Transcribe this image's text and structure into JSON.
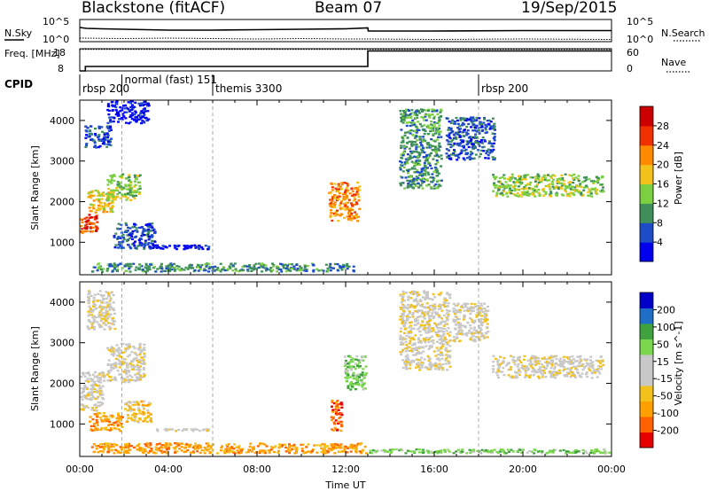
{
  "header": {
    "station": "Blackstone (fitACF)",
    "beam": "Beam 07",
    "date": "19/Sep/2015"
  },
  "colors": {
    "power_scale": [
      "#0000ee",
      "#1e4cc8",
      "#3f8f5a",
      "#7bcf40",
      "#f2c21b",
      "#ff8a00",
      "#f03000",
      "#cc0000"
    ],
    "velocity_scale": [
      "#e60000",
      "#ff6000",
      "#ffa000",
      "#f2c21b",
      "#c8c8c8",
      "#c8c8c8",
      "#7bd84e",
      "#3fa23f",
      "#1e6ec8",
      "#0000c8"
    ],
    "ground_scatter": "#c8c8c8"
  },
  "chart_data": [
    {
      "type": "line",
      "title": "N.Sky / N.Search",
      "ylabel": "N.Sky",
      "ylabel_right": "N.Search",
      "y_ticks_left": [
        "10^5",
        "10^0"
      ],
      "y_ticks_right": [
        "10^5",
        "10^0"
      ],
      "series": [
        {
          "name": "N.Sky",
          "style": "solid",
          "x": [
            0.0,
            0.3,
            1.0,
            2.0,
            3.0,
            4.0,
            6.0,
            8.0,
            10.0,
            12.0,
            13.0,
            13.02,
            16.0,
            20.0,
            24.0
          ],
          "y": [
            3.2,
            3.0,
            2.9,
            2.8,
            2.7,
            2.6,
            2.6,
            2.7,
            2.8,
            2.9,
            3.1,
            2.4,
            2.4,
            2.5,
            2.5
          ]
        },
        {
          "name": "N.Search",
          "style": "dotted",
          "x": [
            0.0,
            2.0,
            4.0,
            6.0,
            8.0,
            10.0,
            12.0,
            13.0,
            16.0,
            20.0,
            24.0
          ],
          "y": [
            0.8,
            0.7,
            0.8,
            0.7,
            0.6,
            0.7,
            0.6,
            0.6,
            0.5,
            0.6,
            0.5
          ]
        }
      ]
    },
    {
      "type": "line",
      "ylabel": "Freq. [MHz]",
      "ylabel_right": "Nave",
      "y_ticks_left": [
        "18",
        "8"
      ],
      "y_ticks_right": [
        "60",
        "0"
      ],
      "series": [
        {
          "name": "Freq.",
          "style": "solid",
          "x": [
            0.0,
            0.25,
            0.25,
            13.0,
            13.0,
            24.0
          ],
          "y": [
            8.0,
            8.0,
            10.0,
            10.0,
            17.0,
            17.0
          ]
        },
        {
          "name": "Nave",
          "style": "dotted",
          "x": [
            0.0,
            24.0
          ],
          "y": [
            58,
            58
          ]
        }
      ]
    },
    {
      "type": "table",
      "title": "CPID",
      "segments": [
        {
          "label": "rbsp 200",
          "start": 0.0
        },
        {
          "label": "normal (fast) 151",
          "start": 1.9
        },
        {
          "label": "themis 3300",
          "start": 6.0
        },
        {
          "label": "rbsp 200",
          "start": 18.0
        }
      ]
    },
    {
      "type": "heatmap",
      "quantity": "Power",
      "ylabel": "Slant Range [km]",
      "colorbar_label": "Power [dB]",
      "colorbar_ticks": [
        "4",
        "8",
        "12",
        "16",
        "20",
        "24",
        "28"
      ],
      "y_ticks": [
        "1000",
        "2000",
        "3000",
        "4000"
      ],
      "ylim": [
        200,
        4500
      ],
      "xlim": [
        0,
        24
      ],
      "cpid_boundaries": [
        1.9,
        6.0,
        18.0
      ],
      "features": [
        {
          "t0": 0.0,
          "t1": 0.9,
          "r0": 1200,
          "r1": 1700,
          "level": 6
        },
        {
          "t0": 0.3,
          "t1": 1.6,
          "r0": 1700,
          "r1": 2300,
          "level": 4
        },
        {
          "t0": 1.2,
          "t1": 2.8,
          "r0": 2000,
          "r1": 2700,
          "level": 3
        },
        {
          "t0": 0.2,
          "t1": 1.5,
          "r0": 3300,
          "r1": 3900,
          "level": 1
        },
        {
          "t0": 1.2,
          "t1": 3.2,
          "r0": 3900,
          "r1": 4500,
          "level": 0
        },
        {
          "t0": 1.5,
          "t1": 3.5,
          "r0": 800,
          "r1": 1500,
          "level": 1
        },
        {
          "t0": 3.0,
          "t1": 6.0,
          "r0": 800,
          "r1": 950,
          "level": 0
        },
        {
          "t0": 11.2,
          "t1": 12.7,
          "r0": 1500,
          "r1": 2500,
          "level": 5
        },
        {
          "t0": 14.4,
          "t1": 16.4,
          "r0": 2300,
          "r1": 4300,
          "level": 2
        },
        {
          "t0": 16.5,
          "t1": 18.8,
          "r0": 3000,
          "r1": 4100,
          "level": 1
        },
        {
          "t0": 18.6,
          "t1": 23.7,
          "r0": 2100,
          "r1": 2700,
          "level": 3
        },
        {
          "t0": 0.5,
          "t1": 12.5,
          "r0": 250,
          "r1": 500,
          "level": 2
        }
      ]
    },
    {
      "type": "heatmap",
      "quantity": "Velocity",
      "ylabel": "Slant Range [km]",
      "colorbar_label": "Velocity [m s^-1]",
      "colorbar_ticks": [
        "200",
        "100",
        "50",
        "15",
        "-15",
        "-50",
        "-100",
        "-200"
      ],
      "y_ticks": [
        "1000",
        "2000",
        "3000",
        "4000"
      ],
      "ylim": [
        200,
        4500
      ],
      "xlim": [
        0,
        24
      ],
      "x_ticks": [
        "00:00",
        "04:00",
        "08:00",
        "12:00",
        "16:00",
        "20:00",
        "00:00"
      ],
      "xlabel": "Time UT",
      "cpid_boundaries": [
        1.9,
        6.0,
        18.0
      ],
      "features": [
        {
          "t0": 0.0,
          "t1": 1.2,
          "r0": 1300,
          "r1": 2300,
          "level": 4
        },
        {
          "t0": 1.2,
          "t1": 3.0,
          "r0": 2000,
          "r1": 3000,
          "level": 4
        },
        {
          "t0": 0.3,
          "t1": 1.7,
          "r0": 3300,
          "r1": 4300,
          "level": 4
        },
        {
          "t0": 0.4,
          "t1": 2.0,
          "r0": 800,
          "r1": 1300,
          "level": 2
        },
        {
          "t0": 2.0,
          "t1": 3.3,
          "r0": 1000,
          "r1": 1600,
          "level": 3
        },
        {
          "t0": 3.3,
          "t1": 6.0,
          "r0": 800,
          "r1": 900,
          "level": 4
        },
        {
          "t0": 11.3,
          "t1": 11.9,
          "r0": 800,
          "r1": 1600,
          "level": 1
        },
        {
          "t0": 11.9,
          "t1": 13.0,
          "r0": 1800,
          "r1": 2700,
          "level": 6
        },
        {
          "t0": 14.4,
          "t1": 16.8,
          "r0": 2300,
          "r1": 4300,
          "level": 4
        },
        {
          "t0": 16.8,
          "t1": 18.5,
          "r0": 3000,
          "r1": 4000,
          "level": 4
        },
        {
          "t0": 18.6,
          "t1": 23.7,
          "r0": 2100,
          "r1": 2700,
          "level": 4
        },
        {
          "t0": 0.5,
          "t1": 13.0,
          "r0": 250,
          "r1": 550,
          "level": 2
        },
        {
          "t0": 13.0,
          "t1": 24.0,
          "r0": 250,
          "r1": 400,
          "level": 6
        }
      ]
    }
  ]
}
